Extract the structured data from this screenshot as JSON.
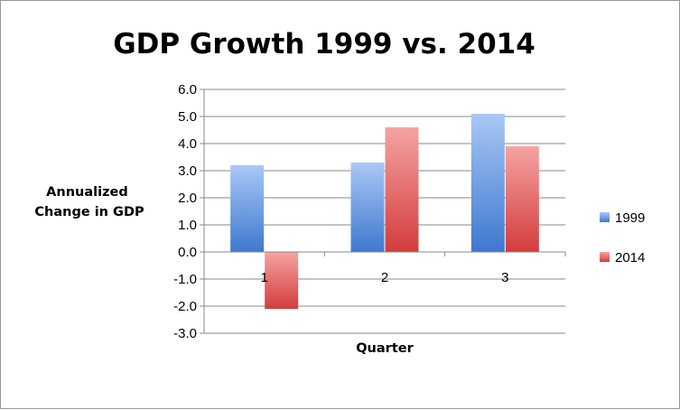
{
  "chart_data": {
    "type": "bar",
    "title": "GDP Growth 1999 vs. 2014",
    "xlabel": "Quarter",
    "ylabel": [
      "Annualized",
      "Change in GDP"
    ],
    "categories": [
      "1",
      "2",
      "3"
    ],
    "series": [
      {
        "name": "1999",
        "values": [
          3.2,
          3.3,
          5.1
        ],
        "color": "#4a7fd0"
      },
      {
        "name": "2014",
        "values": [
          -2.1,
          4.6,
          3.9
        ],
        "color": "#d94a4a"
      }
    ],
    "ylim": [
      -3.0,
      6.0
    ],
    "yticks": [
      "-3.0",
      "-2.0",
      "-1.0",
      "0.0",
      "1.0",
      "2.0",
      "3.0",
      "4.0",
      "5.0",
      "6.0"
    ],
    "grid": true,
    "legend_position": "right"
  }
}
